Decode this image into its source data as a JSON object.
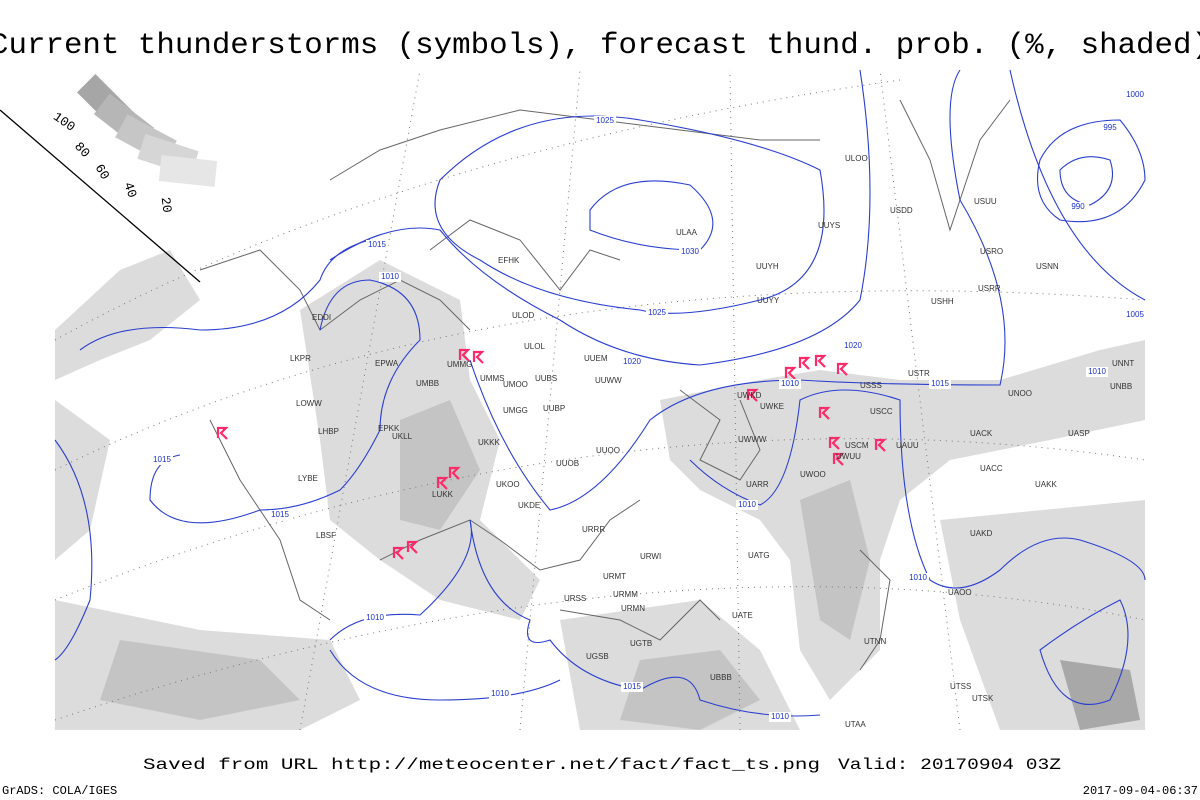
{
  "title": "Current thunderstorms (symbols), forecast thund. prob. (%, shaded)",
  "legend": {
    "levels": [
      "100",
      "80",
      "60",
      "40",
      "20"
    ]
  },
  "isobars": [
    "1025",
    "1030",
    "1025",
    "1020",
    "1015",
    "1010",
    "1015",
    "1015",
    "1010",
    "1010",
    "1015",
    "1010",
    "1010",
    "1010",
    "1020",
    "1015",
    "1010",
    "1010",
    "1005",
    "1000",
    "995",
    "990"
  ],
  "stations": [
    "ULOD",
    "ULOL",
    "UUEM",
    "UUWW",
    "UUBS",
    "UUBP",
    "UMMS",
    "UMMG",
    "UMOO",
    "UMGG",
    "UKKK",
    "UKLL",
    "UMBB",
    "EPWA",
    "EPKK",
    "LKPR",
    "LOWW",
    "LHBP",
    "LYBE",
    "LBSF",
    "LUKK",
    "UKOO",
    "UKDE",
    "UUOB",
    "UUOO",
    "URRR",
    "URWI",
    "URMT",
    "URMM",
    "URMN",
    "URSS",
    "UGTB",
    "UGSB",
    "UBBB",
    "UATG",
    "UATE",
    "UARR",
    "UWOO",
    "UWUU",
    "UWKE",
    "UWKD",
    "UWWW",
    "USCC",
    "USCM",
    "UAUU",
    "USTR",
    "USSS",
    "UNOO",
    "UACK",
    "UASP",
    "UACC",
    "UAKK",
    "UAKD",
    "UAOO",
    "UTNN",
    "UTAA",
    "UTSK",
    "UTSS",
    "UNBB",
    "ULAA",
    "ULOO",
    "UUYY",
    "UUYH",
    "UUYS",
    "USDD",
    "USHH",
    "USRR",
    "USNN",
    "USRO",
    "USUU",
    "UNNT",
    "EFHK",
    "EDDI"
  ],
  "footer": {
    "source": "Saved from URL http://meteocenter.net/fact/fact_ts.png",
    "valid": "Valid: 20170904 03Z",
    "software": "GrADS: COLA/IGES",
    "timestamp": "2017-09-04-06:37"
  }
}
